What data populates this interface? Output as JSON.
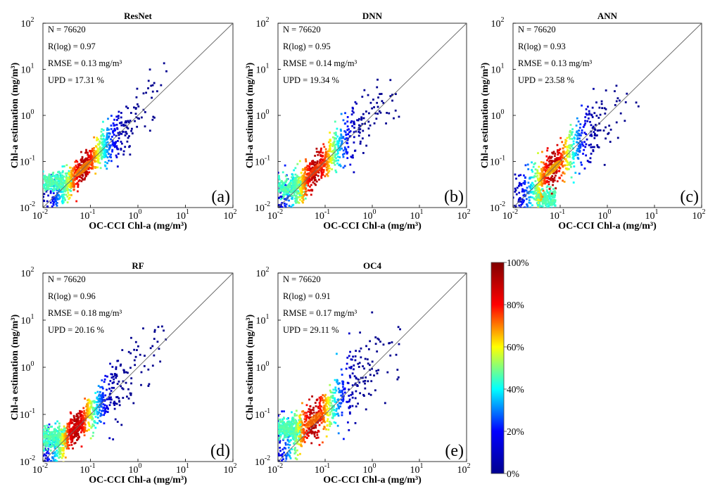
{
  "chart_data": {
    "type": "scatter",
    "subtype": "density-scatter-grid",
    "x_axis_label": "OC-CCI Chl-a (mg/m³)",
    "y_axis_label": "Chl-a estimation (mg/m³)",
    "xscale": "log",
    "yscale": "log",
    "xlim": [
      0.01,
      100
    ],
    "ylim": [
      0.01,
      100
    ],
    "tick_base": "10",
    "tick_exponents": [
      "-2",
      "-1",
      "0",
      "1",
      "2"
    ],
    "reference_line": "1:1",
    "panels": [
      {
        "id": "a",
        "title": "ResNet",
        "panel_label": "(a)",
        "stats": [
          "N = 76620",
          "R(log) = 0.97",
          "RMSE = 0.13 mg/m³",
          "UPD = 17.31 %"
        ],
        "cloud": {
          "center_logx": -1.15,
          "center_logy": -1.15,
          "along_spread": 0.32,
          "cross_spread": 0.06,
          "extent_logx": [
            -2,
            0.6
          ],
          "slope": 1.0,
          "tail_logx": [
            -2,
            -1.4
          ],
          "tail_logy": -1.45,
          "hot_color": "#ff9a00"
        }
      },
      {
        "id": "b",
        "title": "DNN",
        "panel_label": "(b)",
        "stats": [
          "N = 76620",
          "R(log) = 0.95",
          "RMSE = 0.14 mg/m³",
          "UPD = 19.34 %"
        ],
        "cloud": {
          "center_logx": -1.2,
          "center_logy": -1.18,
          "along_spread": 0.34,
          "cross_spread": 0.075,
          "extent_logx": [
            -2,
            0.6
          ],
          "slope": 1.0,
          "tail_logx": [
            -2,
            -1.4
          ],
          "tail_logy": -1.55,
          "hot_color": "#ff4000"
        }
      },
      {
        "id": "c",
        "title": "ANN",
        "panel_label": "(c)",
        "stats": [
          "N = 76620",
          "R(log) = 0.93",
          "RMSE = 0.13 mg/m³",
          "UPD = 23.58 %"
        ],
        "cloud": {
          "center_logx": -1.15,
          "center_logy": -1.15,
          "along_spread": 0.32,
          "cross_spread": 0.08,
          "extent_logx": [
            -2,
            0.7
          ],
          "slope": 1.0,
          "tail_logx": [
            -1.5,
            -1.1
          ],
          "tail_logy": -1.8,
          "hot_color": "#ffd000"
        }
      },
      {
        "id": "d",
        "title": "RF",
        "panel_label": "(d)",
        "stats": [
          "N = 76620",
          "R(log) = 0.96",
          "RMSE = 0.18 mg/m³",
          "UPD = 20.16 %"
        ],
        "cloud": {
          "center_logx": -1.3,
          "center_logy": -1.28,
          "along_spread": 0.3,
          "cross_spread": 0.07,
          "extent_logx": [
            -2,
            0.6
          ],
          "slope": 1.0,
          "tail_logx": [
            -2,
            -1.5
          ],
          "tail_logy": -1.5,
          "hot_color": "#e00000"
        }
      },
      {
        "id": "e",
        "title": "OC4",
        "panel_label": "(e)",
        "stats": [
          "N = 76620",
          "R(log) = 0.91",
          "RMSE = 0.17 mg/m³",
          "UPD = 29.11 %"
        ],
        "cloud": {
          "center_logx": -1.25,
          "center_logy": -1.12,
          "along_spread": 0.33,
          "cross_spread": 0.09,
          "extent_logx": [
            -2,
            0.7
          ],
          "slope": 0.9,
          "tail_logx": [
            -2,
            -1.5
          ],
          "tail_logy": -1.3,
          "hot_color": "#ff8000"
        }
      }
    ],
    "colorbar": {
      "label_min": "0%",
      "label_max": "100%",
      "tick_labels": [
        "0%",
        "20%",
        "40%",
        "60%",
        "80%",
        "100%"
      ],
      "tick_values": [
        0,
        20,
        40,
        60,
        80,
        100
      ],
      "colormap": "jet",
      "stops": [
        "#00008f",
        "#0000ff",
        "#00ffff",
        "#ffff00",
        "#ff0000",
        "#800000"
      ]
    }
  }
}
